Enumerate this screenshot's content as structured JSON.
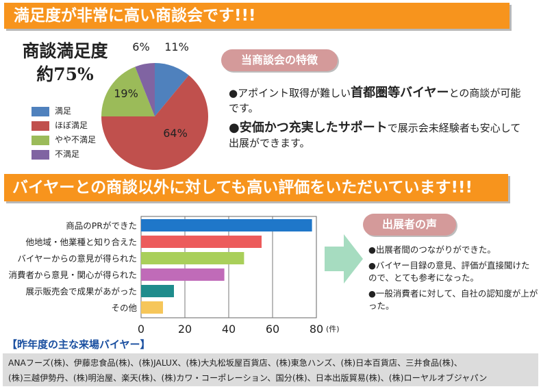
{
  "banner_top": "満足度が非常に高い商談会です!!!",
  "satisfaction": {
    "title_line1": "商談満足度",
    "title_line2": "約75%"
  },
  "feature_pill": "当商談会の特徴",
  "features": [
    {
      "pre": "●アポイント取得が難しい",
      "bold": "首都圏等バイヤー",
      "post": "との商談が可能です。"
    },
    {
      "pre": "●",
      "bold": "安価かつ充実したサポート",
      "post": "で展示会未経験者も安心して出展ができます。"
    }
  ],
  "banner_mid": "バイヤーとの商談以外に対しても高い評価をいただいています!!!",
  "voice_pill": "出展者の声",
  "voice_items": [
    "●出展者間のつながりができた。",
    "●バイヤー目録の意見、評価が直接聞けたので、とても参考になった。",
    "●一般消費者に対して、自社の認知度が上がった。"
  ],
  "buyers_title": "【昨年度の主な来場バイヤー】",
  "buyers_line1": "ANAフーズ(株)、伊藤忠食品(株)、(株)JALUX、(株)大丸松坂屋百貨店、(株)東急ハンズ、(株)日本百貨店、三井食品(株)、",
  "buyers_line2": "(株)三越伊勢丹、(株)明治屋、楽天(株)、(株)カワ・コーポレーション、国分(株)、日本出版貿易(株)、(株)ローヤルオブジャパン",
  "chart_data": [
    {
      "type": "pie",
      "categories": [
        "満足",
        "ほぼ満足",
        "やや不満足",
        "不満足"
      ],
      "values": [
        11,
        64,
        19,
        6
      ],
      "labels": [
        "11%",
        "64%",
        "19%",
        "6%"
      ],
      "colors": [
        "#4f81bd",
        "#c0504d",
        "#9bbb59",
        "#8064a2"
      ],
      "legend_position": "left"
    },
    {
      "type": "bar",
      "orientation": "horizontal",
      "categories": [
        "商品のPRができた",
        "他地域・他業種と知り合えた",
        "バイヤーからの意見が得られた",
        "消費者から意見・関心が得られた",
        "展示販売会で成果があがった",
        "その他"
      ],
      "values": [
        78,
        55,
        47,
        38,
        15,
        10
      ],
      "colors": [
        "#1f77c9",
        "#ec5b5b",
        "#a9cf5a",
        "#c06bb8",
        "#1f8c8c",
        "#f6c65a"
      ],
      "xlim": [
        0,
        80
      ],
      "xticks": [
        0,
        20,
        40,
        60,
        80
      ],
      "unit": "(件)",
      "grid": true
    }
  ]
}
